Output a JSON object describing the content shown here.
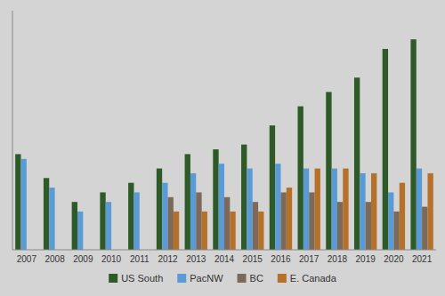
{
  "chart_data": {
    "type": "bar",
    "categories": [
      "2007",
      "2008",
      "2009",
      "2010",
      "2011",
      "2012",
      "2013",
      "2014",
      "2015",
      "2016",
      "2017",
      "2018",
      "2019",
      "2020",
      "2021"
    ],
    "series": [
      {
        "name": "US South",
        "color": "#2d5a27",
        "values": [
          20,
          15,
          10,
          12,
          14,
          17,
          20,
          21,
          22,
          26,
          30,
          33,
          36,
          42,
          44
        ]
      },
      {
        "name": "PacNW",
        "color": "#5b9bd5",
        "values": [
          19,
          13,
          8,
          10,
          12,
          14,
          16,
          18,
          17,
          18,
          17,
          17,
          16,
          12,
          17
        ]
      },
      {
        "name": "BC",
        "color": "#7b6a5a",
        "values": [
          0,
          0,
          0,
          0,
          0,
          11,
          12,
          11,
          10,
          12,
          12,
          10,
          10,
          8,
          9
        ]
      },
      {
        "name": "E. Canada",
        "color": "#b5712a",
        "values": [
          0,
          0,
          0,
          0,
          0,
          8,
          8,
          8,
          8,
          13,
          17,
          17,
          16,
          14,
          16
        ]
      }
    ],
    "ylim": [
      0,
      50
    ],
    "grid": false,
    "tick_labels": "x",
    "legend": "bottom"
  }
}
